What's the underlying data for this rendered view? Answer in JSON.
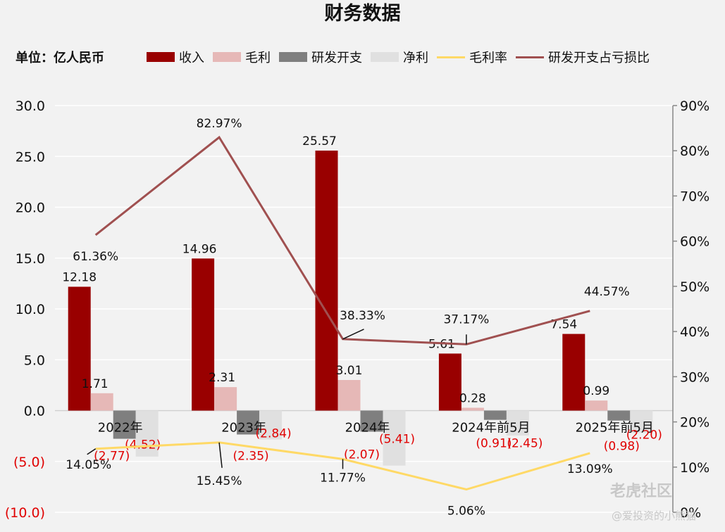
{
  "title": "财务数据",
  "unit_label": "单位：亿人民币",
  "watermark": "老虎社区",
  "watermark_user": "@爱投资的小熊猫",
  "legend": [
    {
      "label": "收入",
      "kind": "bar",
      "color": "#990000"
    },
    {
      "label": "毛利",
      "kind": "bar",
      "color": "#e6b8b7"
    },
    {
      "label": "研发开支",
      "kind": "bar",
      "color": "#7f7f7f"
    },
    {
      "label": "净利",
      "kind": "bar",
      "color": "#e0e0e0"
    },
    {
      "label": "毛利率",
      "kind": "line",
      "color": "#ffd966"
    },
    {
      "label": "研发开支占亏损比",
      "kind": "line",
      "color": "#a05050"
    }
  ],
  "chart_data": {
    "type": "bar",
    "title": "财务数据",
    "categories": [
      "2022年",
      "2023年",
      "2024年",
      "2024年前5月",
      "2025年前5月"
    ],
    "series": [
      {
        "name": "收入",
        "axis": "left",
        "values": [
          12.18,
          14.96,
          25.57,
          5.61,
          7.54
        ],
        "labels": [
          "12.18",
          "14.96",
          "25.57",
          "5.61",
          "7.54"
        ],
        "color": "#990000"
      },
      {
        "name": "毛利",
        "axis": "left",
        "values": [
          1.71,
          2.31,
          3.01,
          0.28,
          0.99
        ],
        "labels": [
          "1.71",
          "2.31",
          "3.01",
          "0.28",
          "0.99"
        ],
        "color": "#e6b8b7"
      },
      {
        "name": "研发开支",
        "axis": "left",
        "values": [
          -2.77,
          -2.35,
          -2.07,
          -0.91,
          -0.98
        ],
        "labels": [
          "(2.77)",
          "(2.35)",
          "(2.07)",
          "(0.91)",
          "(0.98)"
        ],
        "color": "#7f7f7f"
      },
      {
        "name": "净利",
        "axis": "left",
        "values": [
          -4.52,
          -2.84,
          -5.41,
          -2.45,
          -2.2
        ],
        "labels": [
          "(4.52)",
          "(2.84)",
          "(5.41)",
          "(2.45)",
          "(2.20)"
        ],
        "color": "#e0e0e0"
      },
      {
        "name": "毛利率",
        "type": "line",
        "axis": "right",
        "values": [
          14.05,
          15.45,
          11.77,
          5.06,
          13.09
        ],
        "labels": [
          "14.05%",
          "15.45%",
          "11.77%",
          "5.06%",
          "13.09%"
        ],
        "color": "#ffd966"
      },
      {
        "name": "研发开支占亏损比",
        "type": "line",
        "axis": "right",
        "values": [
          61.36,
          82.97,
          38.33,
          37.17,
          44.57
        ],
        "labels": [
          "61.36%",
          "82.97%",
          "38.33%",
          "37.17%",
          "44.57%"
        ],
        "color": "#a05050"
      }
    ],
    "left_axis": {
      "ylim": [
        -10,
        30
      ],
      "ticks": [
        30,
        25,
        20,
        15,
        10,
        5,
        0,
        -5,
        -10
      ],
      "tick_labels": [
        "30.0",
        "25.0",
        "20.0",
        "15.0",
        "10.0",
        "5.0",
        "0.0",
        "(5.0)",
        "(10.0)"
      ]
    },
    "right_axis": {
      "ylim": [
        0,
        90
      ],
      "ticks": [
        90,
        80,
        70,
        60,
        50,
        40,
        30,
        20,
        10,
        0
      ],
      "tick_labels": [
        "90%",
        "80%",
        "70%",
        "60%",
        "50%",
        "40%",
        "30%",
        "20%",
        "10%",
        "0%"
      ]
    },
    "grid": true,
    "legend_position": "top"
  }
}
